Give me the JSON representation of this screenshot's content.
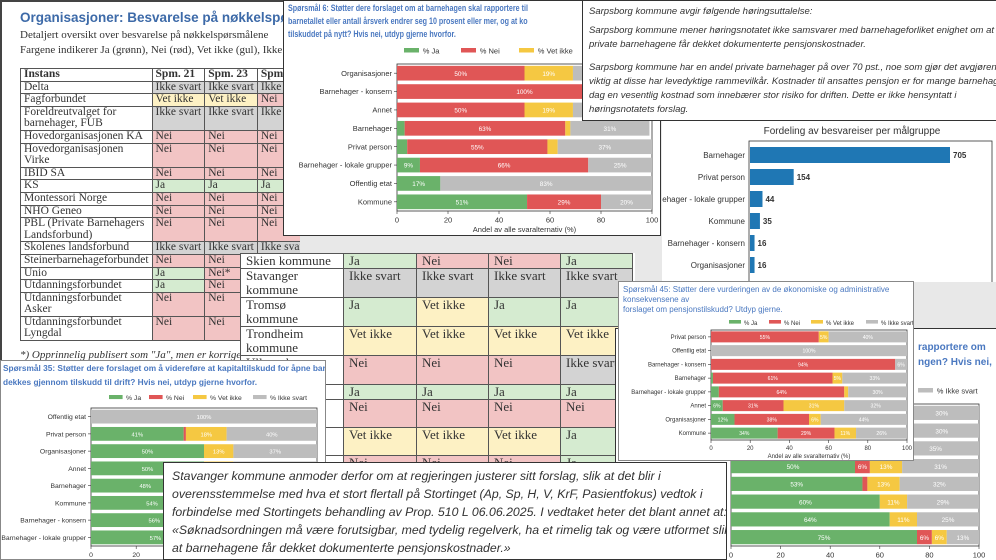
{
  "org_table": {
    "title": "Organisasjoner: Besvarelse på nøkkelspørsmålene",
    "subtitle_lines": [
      "Detaljert oversikt over besvarelse på nøkkelspørsmålene",
      "Fargene indikerer Ja (grønn), Nei (rød), Vet ikke (gul), Ikke svart (grå)."
    ],
    "headers": [
      "Instans",
      "Spm. 21",
      "Spm. 23",
      "Spm."
    ],
    "rows": [
      {
        "name": "Delta",
        "values": [
          "Ikke svart",
          "Ikke svart",
          "Ikke svart"
        ]
      },
      {
        "name": "Fagforbundet",
        "values": [
          "Vet ikke",
          "Vet ikke",
          "Nei"
        ]
      },
      {
        "name": "Foreldreutvalget for barnehager, FUB",
        "values": [
          "Ikke svart",
          "Ikke svart",
          "Ikke svart"
        ]
      },
      {
        "name": "Hovedorganisasjonen KA",
        "values": [
          "Nei",
          "Nei",
          "Nei"
        ]
      },
      {
        "name": "Hovedorganisasjonen Virke",
        "values": [
          "Nei",
          "Nei",
          "Nei"
        ]
      },
      {
        "name": "IBID SA",
        "values": [
          "Nei",
          "Nei",
          "Nei"
        ]
      },
      {
        "name": "KS",
        "values": [
          "Ja",
          "Ja",
          "Ja"
        ]
      },
      {
        "name": "Montessori Norge",
        "values": [
          "Nei",
          "Nei",
          "Nei"
        ]
      },
      {
        "name": "NHO Geneo",
        "values": [
          "Nei",
          "Nei",
          "Nei"
        ]
      },
      {
        "name": "PBL (Private Barnehagers Landsforbund)",
        "values": [
          "Nei",
          "Nei",
          "Nei"
        ]
      },
      {
        "name": "Skolenes landsforbund",
        "values": [
          "Ikke svart",
          "Ikke svart",
          "Ikke svart"
        ]
      },
      {
        "name": "Steinerbarnehageforbundet",
        "values": [
          "Nei",
          "Nei",
          "Nei"
        ]
      },
      {
        "name": "Unio",
        "values": [
          "Ja",
          "Nei*",
          "Nei"
        ]
      },
      {
        "name": "Utdanningsforbundet",
        "values": [
          "Ja",
          "Nei",
          "Nei"
        ]
      },
      {
        "name": "Utdanningsforbundet Asker",
        "values": [
          "Nei",
          "Nei",
          "Nei"
        ]
      },
      {
        "name": "Utdanningsforbundet Lyngdal",
        "values": [
          "Nei",
          "Nei",
          "Nei"
        ]
      }
    ],
    "footnote": "*) Opprinnelig publisert som \"Ja\", men er korrigert"
  },
  "kommune_table": {
    "rows": [
      {
        "name": "Skien kommune",
        "values": [
          "Ja",
          "Nei",
          "Nei",
          "Ja"
        ]
      },
      {
        "name": "Stavanger kommune",
        "values": [
          "Ikke svart",
          "Ikke svart",
          "Ikke svart",
          "Ikke svart"
        ]
      },
      {
        "name": "Tromsø kommune",
        "values": [
          "Ja",
          "Vet ikke",
          "Ja",
          "Ja"
        ]
      },
      {
        "name": "Trondheim kommune",
        "values": [
          "Vet ikke",
          "Vet ikke",
          "Vet ikke",
          "Vet ikke"
        ]
      },
      {
        "name": "Ullensaker kommune",
        "values": [
          "Nei",
          "Nei",
          "Nei",
          "Ikke svart"
        ]
      },
      {
        "name": "",
        "values": [
          "Ja",
          "Ja",
          "Ja",
          "Ja"
        ]
      },
      {
        "name": "",
        "values": [
          "Nei",
          "Nei",
          "Nei",
          "Nei"
        ]
      },
      {
        "name": "",
        "values": [
          "Vet ikke",
          "Vet ikke",
          "Vet ikke",
          "Ja"
        ]
      },
      {
        "name": "",
        "values": [
          "Nei",
          "Nei",
          "Nei",
          "Ja"
        ]
      }
    ]
  },
  "sarpsborg": {
    "lines": [
      "Sarpsborg kommune avgir følgende høringsuttalelse:",
      "Sarpsborg kommune mener høringsnotatet ikke samsvarer med barnehageforliket enighet om at de",
      "private barnehagene får dekket dokumenterte pensjonskostnader.",
      "Sarpsborg kommune har en andel private barnehager på over 70 pst., noe som gjør det avgjørende",
      "viktig at disse har levedyktige rammevilkår. Kostnader til ansattes pensjon er for mange barnehager i",
      "dag en vesentlig kostnad som innebærer stor risiko for driften. Dette er ikke hensyntatt i",
      "høringsnotatets forslag."
    ]
  },
  "stavanger": {
    "lines": [
      "Stavanger kommune anmoder derfor om at regjeringen justerer sitt forslag, slik at det blir i",
      "overensstemmelse  med hva et stort flertall på Stortinget (Ap, Sp, H, V, KrF, Pasientfokus) vedtok i",
      "forbindelse med Stortingets behandling av Prop. 510 L 06.06.2025. I vedtaket heter det blant annet at:",
      "«Søknadsordningen må være forutsigbar, med tydelig regelverk, ha et rimelig tak og være utformet slik",
      "at barnehagene får dekket dokumenterte pensjonskostnader.»"
    ]
  },
  "colors": {
    "ja": "#6ab26a",
    "nei": "#e05656",
    "vet": "#f5c842",
    "ikke": "#bdbdbd",
    "bar": "#1f77b4",
    "question": "#4a78c0"
  },
  "chart_data": [
    {
      "id": "q6",
      "type": "bar",
      "stacked": true,
      "orientation": "horizontal",
      "title_lines": [
        "Spørsmål 6: Støtter dere forslaget om at barnehagen skal rapportere til",
        "barnetallet eller antall årsverk endrer seg 10 prosent eller mer, og at ko",
        "tilskuddet på nytt? Hvis nei, utdyp gjerne hvorfor."
      ],
      "xlabel": "Andel av alle svaralternativ (%)",
      "xlim": [
        0,
        100
      ],
      "xticks": [
        0,
        20,
        40,
        60,
        80,
        100
      ],
      "legend": [
        "% Ja",
        "% Nei",
        "% Vet ikke",
        "% Ikke svart"
      ],
      "legend_position": "top",
      "categories": [
        "Organisasjoner",
        "Barnehager - konsern",
        "Annet",
        "Barnehager",
        "Privat person",
        "Barnehager - lokale grupper",
        "Offentlig etat",
        "Kommune"
      ],
      "series": [
        {
          "name": "% Ja",
          "values": [
            0,
            0,
            0,
            3,
            4,
            9,
            17,
            51
          ]
        },
        {
          "name": "% Nei",
          "values": [
            50,
            100,
            50,
            63,
            55,
            66,
            0,
            29
          ]
        },
        {
          "name": "% Vet ikke",
          "values": [
            19,
            0,
            19,
            2,
            4,
            0,
            0,
            0
          ]
        },
        {
          "name": "% Ikke svart",
          "values": [
            31,
            0,
            31,
            31,
            37,
            25,
            83,
            20
          ]
        }
      ]
    },
    {
      "id": "fordeling",
      "type": "bar",
      "orientation": "horizontal",
      "title": "Fordeling av besvareiser per målgruppe",
      "categories": [
        "Barnehager",
        "Privat person",
        "Barnehager - lokale grupper",
        "Kommune",
        "Barnehager - konsern",
        "Organisasjoner"
      ],
      "values": [
        705,
        154,
        44,
        35,
        16,
        16
      ]
    },
    {
      "id": "q45",
      "type": "bar",
      "stacked": true,
      "orientation": "horizontal",
      "title_lines": [
        "Spørsmål 45: Støtter dere vurderingen av de økonomiske og administrative konsekvensene av",
        "forslaget om pensjonstilskudd? Utdyp gjerne."
      ],
      "xlabel": "Andel av alle svaralternativ (%)",
      "xlim": [
        0,
        100
      ],
      "xticks": [
        0,
        20,
        40,
        60,
        80,
        100
      ],
      "legend": [
        "% Ja",
        "% Nei",
        "% Vet ikke",
        "% Ikke svart"
      ],
      "legend_position": "top",
      "categories": [
        "Privat person",
        "Offentlig etat",
        "Barnehager - konsern",
        "Barnehager",
        "Barnehager - lokale grupper",
        "Annet",
        "Organisasjoner",
        "Kommune"
      ],
      "series": [
        {
          "name": "% Ja",
          "values": [
            0,
            0,
            0,
            1,
            4,
            6,
            12,
            34
          ]
        },
        {
          "name": "% Nei",
          "values": [
            55,
            0,
            94,
            61,
            64,
            31,
            38,
            29
          ]
        },
        {
          "name": "% Vet ikke",
          "values": [
            5,
            0,
            0,
            5,
            2,
            31,
            6,
            11
          ]
        },
        {
          "name": "% Ikke svart",
          "values": [
            40,
            100,
            6,
            33,
            30,
            32,
            44,
            26
          ]
        }
      ]
    },
    {
      "id": "q35",
      "type": "bar",
      "stacked": true,
      "orientation": "horizontal",
      "title_lines": [
        "Spørsmål 35: Støtter dere forslaget om å videreføre at kapitaltilskudd for åpne barnehager",
        "dekkes gjennom tilskudd til drift? Hvis nei, utdyp gjerne hvorfor."
      ],
      "xlabel": "Andel av alle svaralternativ (%)",
      "xlim": [
        0,
        100
      ],
      "xticks": [
        0,
        20,
        40,
        60,
        80,
        100
      ],
      "legend": [
        "% Ja",
        "% Nei",
        "% Vet ikke",
        "% Ikke svart"
      ],
      "legend_position": "top",
      "categories": [
        "Offentlig etat",
        "Privat person",
        "Organisasjoner",
        "Annet",
        "Barnehager",
        "Kommune",
        "Barnehager - konsern",
        "Barnehager - lokale grupper"
      ],
      "series": [
        {
          "name": "% Ja",
          "values": [
            0,
            41,
            50,
            50,
            48,
            54,
            56,
            57
          ]
        },
        {
          "name": "% Nei",
          "values": [
            0,
            1,
            0,
            0,
            0,
            0,
            0,
            0
          ]
        },
        {
          "name": "% Vet ikke",
          "values": [
            0,
            18,
            13,
            13,
            12,
            11,
            6,
            11
          ]
        },
        {
          "name": "% Ikke svart",
          "values": [
            100,
            40,
            37,
            37,
            40,
            35,
            38,
            32
          ]
        }
      ]
    },
    {
      "id": "q_rapportere",
      "type": "bar",
      "stacked": true,
      "orientation": "horizontal",
      "title_lines": [
        "rapportere om",
        "ngen? Hvis nei,"
      ],
      "xlim": [
        0,
        100
      ],
      "xticks": [
        0,
        20,
        40,
        60,
        80,
        100
      ],
      "legend": [
        "% Ja",
        "% Nei",
        "% Vet ikke",
        "% Ikke svart"
      ],
      "legend_position": "top",
      "categories": [
        "",
        "",
        "",
        "",
        "",
        "",
        "",
        ""
      ],
      "series": [
        {
          "name": "% Ja",
          "values": [
            65,
            70,
            65,
            50,
            53,
            60,
            64,
            75
          ]
        },
        {
          "name": "% Nei",
          "values": [
            0,
            0,
            0,
            6,
            2,
            0,
            0,
            6
          ]
        },
        {
          "name": "% Vet ikke",
          "values": [
            5,
            0,
            0,
            13,
            13,
            11,
            11,
            6
          ]
        },
        {
          "name": "% Ikke svart",
          "values": [
            30,
            30,
            35,
            31,
            32,
            29,
            25,
            13
          ]
        }
      ]
    }
  ]
}
